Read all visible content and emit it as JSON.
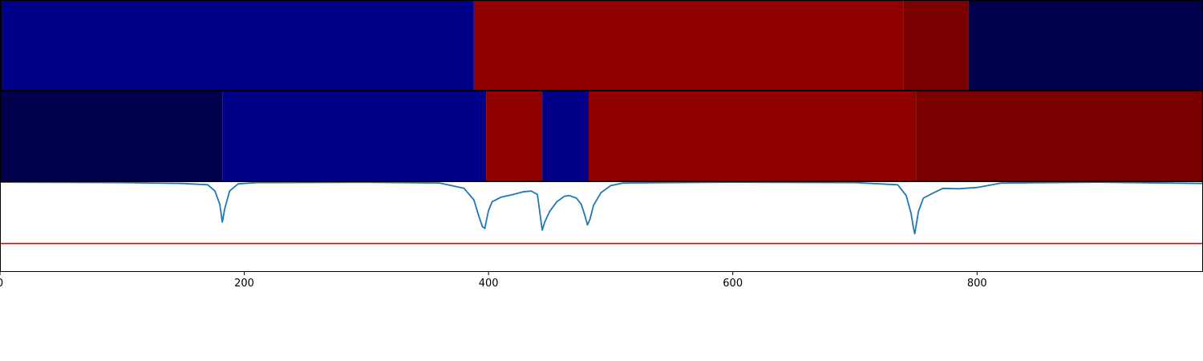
{
  "chart_data": {
    "type": "heatmap",
    "xlim": [
      0,
      985
    ],
    "x_ticks": [
      0,
      200,
      400,
      600,
      800
    ],
    "x_tick_labels": [
      "0",
      "200",
      "400",
      "600",
      "800"
    ],
    "grid": false,
    "legend": "none",
    "band_top": {
      "segments": [
        {
          "start": 0,
          "end": 2,
          "color": "#000050"
        },
        {
          "start": 2,
          "end": 388,
          "color": "#000088"
        },
        {
          "start": 388,
          "end": 740,
          "color": "#8f0000"
        },
        {
          "start": 740,
          "end": 793,
          "color": "#7a0000"
        },
        {
          "start": 793,
          "end": 985,
          "color": "#00004d"
        }
      ]
    },
    "band_middle": {
      "segments": [
        {
          "start": 0,
          "end": 182,
          "color": "#00004d"
        },
        {
          "start": 182,
          "end": 398,
          "color": "#000088"
        },
        {
          "start": 398,
          "end": 444,
          "color": "#8f0000"
        },
        {
          "start": 444,
          "end": 482,
          "color": "#000088"
        },
        {
          "start": 482,
          "end": 750,
          "color": "#8f0000"
        },
        {
          "start": 750,
          "end": 985,
          "color": "#7a0000"
        }
      ]
    },
    "line_panel": {
      "ylim": [
        0,
        1
      ],
      "threshold": {
        "value": 0.31,
        "color": "#dd0000"
      },
      "series": [
        {
          "color": "#1f77b4",
          "x": [
            0,
            100,
            150,
            170,
            176,
            180,
            182,
            184,
            188,
            195,
            210,
            300,
            360,
            380,
            388,
            392,
            395,
            397,
            398,
            400,
            403,
            410,
            420,
            428,
            435,
            440,
            442,
            444,
            446,
            450,
            456,
            462,
            466,
            472,
            476,
            479,
            481,
            483,
            486,
            492,
            500,
            510,
            600,
            700,
            735,
            742,
            746,
            748,
            749,
            750,
            752,
            756,
            763,
            772,
            785,
            800,
            820,
            900,
            985
          ],
          "y": [
            0.999,
            0.995,
            0.985,
            0.97,
            0.9,
            0.75,
            0.55,
            0.7,
            0.9,
            0.98,
            0.995,
            0.998,
            0.99,
            0.93,
            0.8,
            0.62,
            0.5,
            0.48,
            0.55,
            0.68,
            0.78,
            0.83,
            0.86,
            0.89,
            0.9,
            0.86,
            0.66,
            0.46,
            0.55,
            0.67,
            0.78,
            0.84,
            0.85,
            0.82,
            0.75,
            0.62,
            0.52,
            0.58,
            0.74,
            0.88,
            0.96,
            0.99,
            0.999,
            0.995,
            0.97,
            0.85,
            0.65,
            0.48,
            0.42,
            0.5,
            0.67,
            0.82,
            0.87,
            0.93,
            0.925,
            0.94,
            0.99,
            0.999,
            0.985
          ]
        }
      ]
    }
  }
}
